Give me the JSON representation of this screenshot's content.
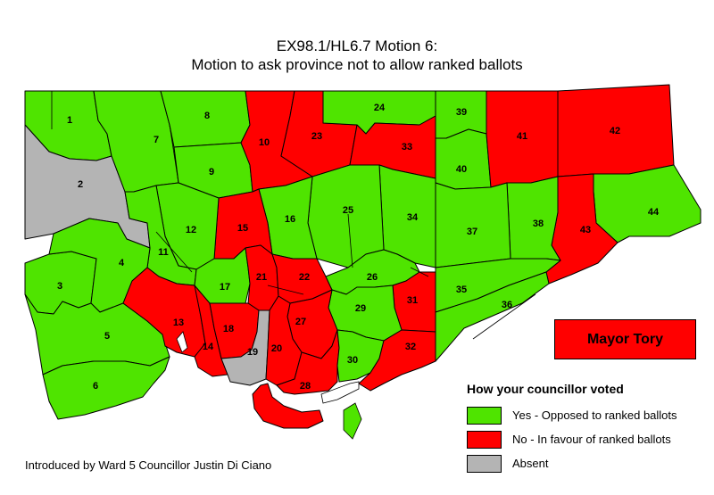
{
  "title": {
    "line1": "EX98.1/HL6.7 Motion 6:",
    "line2": "Motion to ask province not to allow ranked ballots"
  },
  "colors": {
    "yes": "#4fe400",
    "no": "#ff0000",
    "absent": "#b4b4b4"
  },
  "legend": {
    "title": "How your councillor voted",
    "items": [
      {
        "key": "yes",
        "label": "Yes - Opposed to ranked ballots"
      },
      {
        "key": "no",
        "label": "No - In favour of ranked ballots"
      },
      {
        "key": "absent",
        "label": "Absent"
      }
    ]
  },
  "mayor": {
    "label": "Mayor Tory",
    "vote": "no"
  },
  "footer": "Introduced by Ward 5 Councillor Justin Di Ciano",
  "wards": [
    {
      "id": "1",
      "vote": "yes"
    },
    {
      "id": "2",
      "vote": "absent"
    },
    {
      "id": "3",
      "vote": "yes"
    },
    {
      "id": "4",
      "vote": "yes"
    },
    {
      "id": "5",
      "vote": "yes"
    },
    {
      "id": "6",
      "vote": "yes"
    },
    {
      "id": "7",
      "vote": "yes"
    },
    {
      "id": "8",
      "vote": "yes"
    },
    {
      "id": "9",
      "vote": "yes"
    },
    {
      "id": "10",
      "vote": "no"
    },
    {
      "id": "11",
      "vote": "yes"
    },
    {
      "id": "12",
      "vote": "yes"
    },
    {
      "id": "13",
      "vote": "no"
    },
    {
      "id": "14",
      "vote": "no"
    },
    {
      "id": "15",
      "vote": "no"
    },
    {
      "id": "16",
      "vote": "yes"
    },
    {
      "id": "17",
      "vote": "yes"
    },
    {
      "id": "18",
      "vote": "no"
    },
    {
      "id": "19",
      "vote": "absent"
    },
    {
      "id": "20",
      "vote": "no"
    },
    {
      "id": "21",
      "vote": "no"
    },
    {
      "id": "22",
      "vote": "no"
    },
    {
      "id": "23",
      "vote": "no"
    },
    {
      "id": "24",
      "vote": "yes"
    },
    {
      "id": "25",
      "vote": "yes"
    },
    {
      "id": "26",
      "vote": "yes"
    },
    {
      "id": "27",
      "vote": "no"
    },
    {
      "id": "28",
      "vote": "no"
    },
    {
      "id": "29",
      "vote": "yes"
    },
    {
      "id": "30",
      "vote": "yes"
    },
    {
      "id": "31",
      "vote": "no"
    },
    {
      "id": "32",
      "vote": "no"
    },
    {
      "id": "33",
      "vote": "no"
    },
    {
      "id": "34",
      "vote": "yes"
    },
    {
      "id": "35",
      "vote": "yes"
    },
    {
      "id": "36",
      "vote": "yes"
    },
    {
      "id": "37",
      "vote": "yes"
    },
    {
      "id": "38",
      "vote": "yes"
    },
    {
      "id": "39",
      "vote": "yes"
    },
    {
      "id": "40",
      "vote": "yes"
    },
    {
      "id": "41",
      "vote": "no"
    },
    {
      "id": "42",
      "vote": "no"
    },
    {
      "id": "43",
      "vote": "no"
    },
    {
      "id": "44",
      "vote": "yes"
    }
  ]
}
